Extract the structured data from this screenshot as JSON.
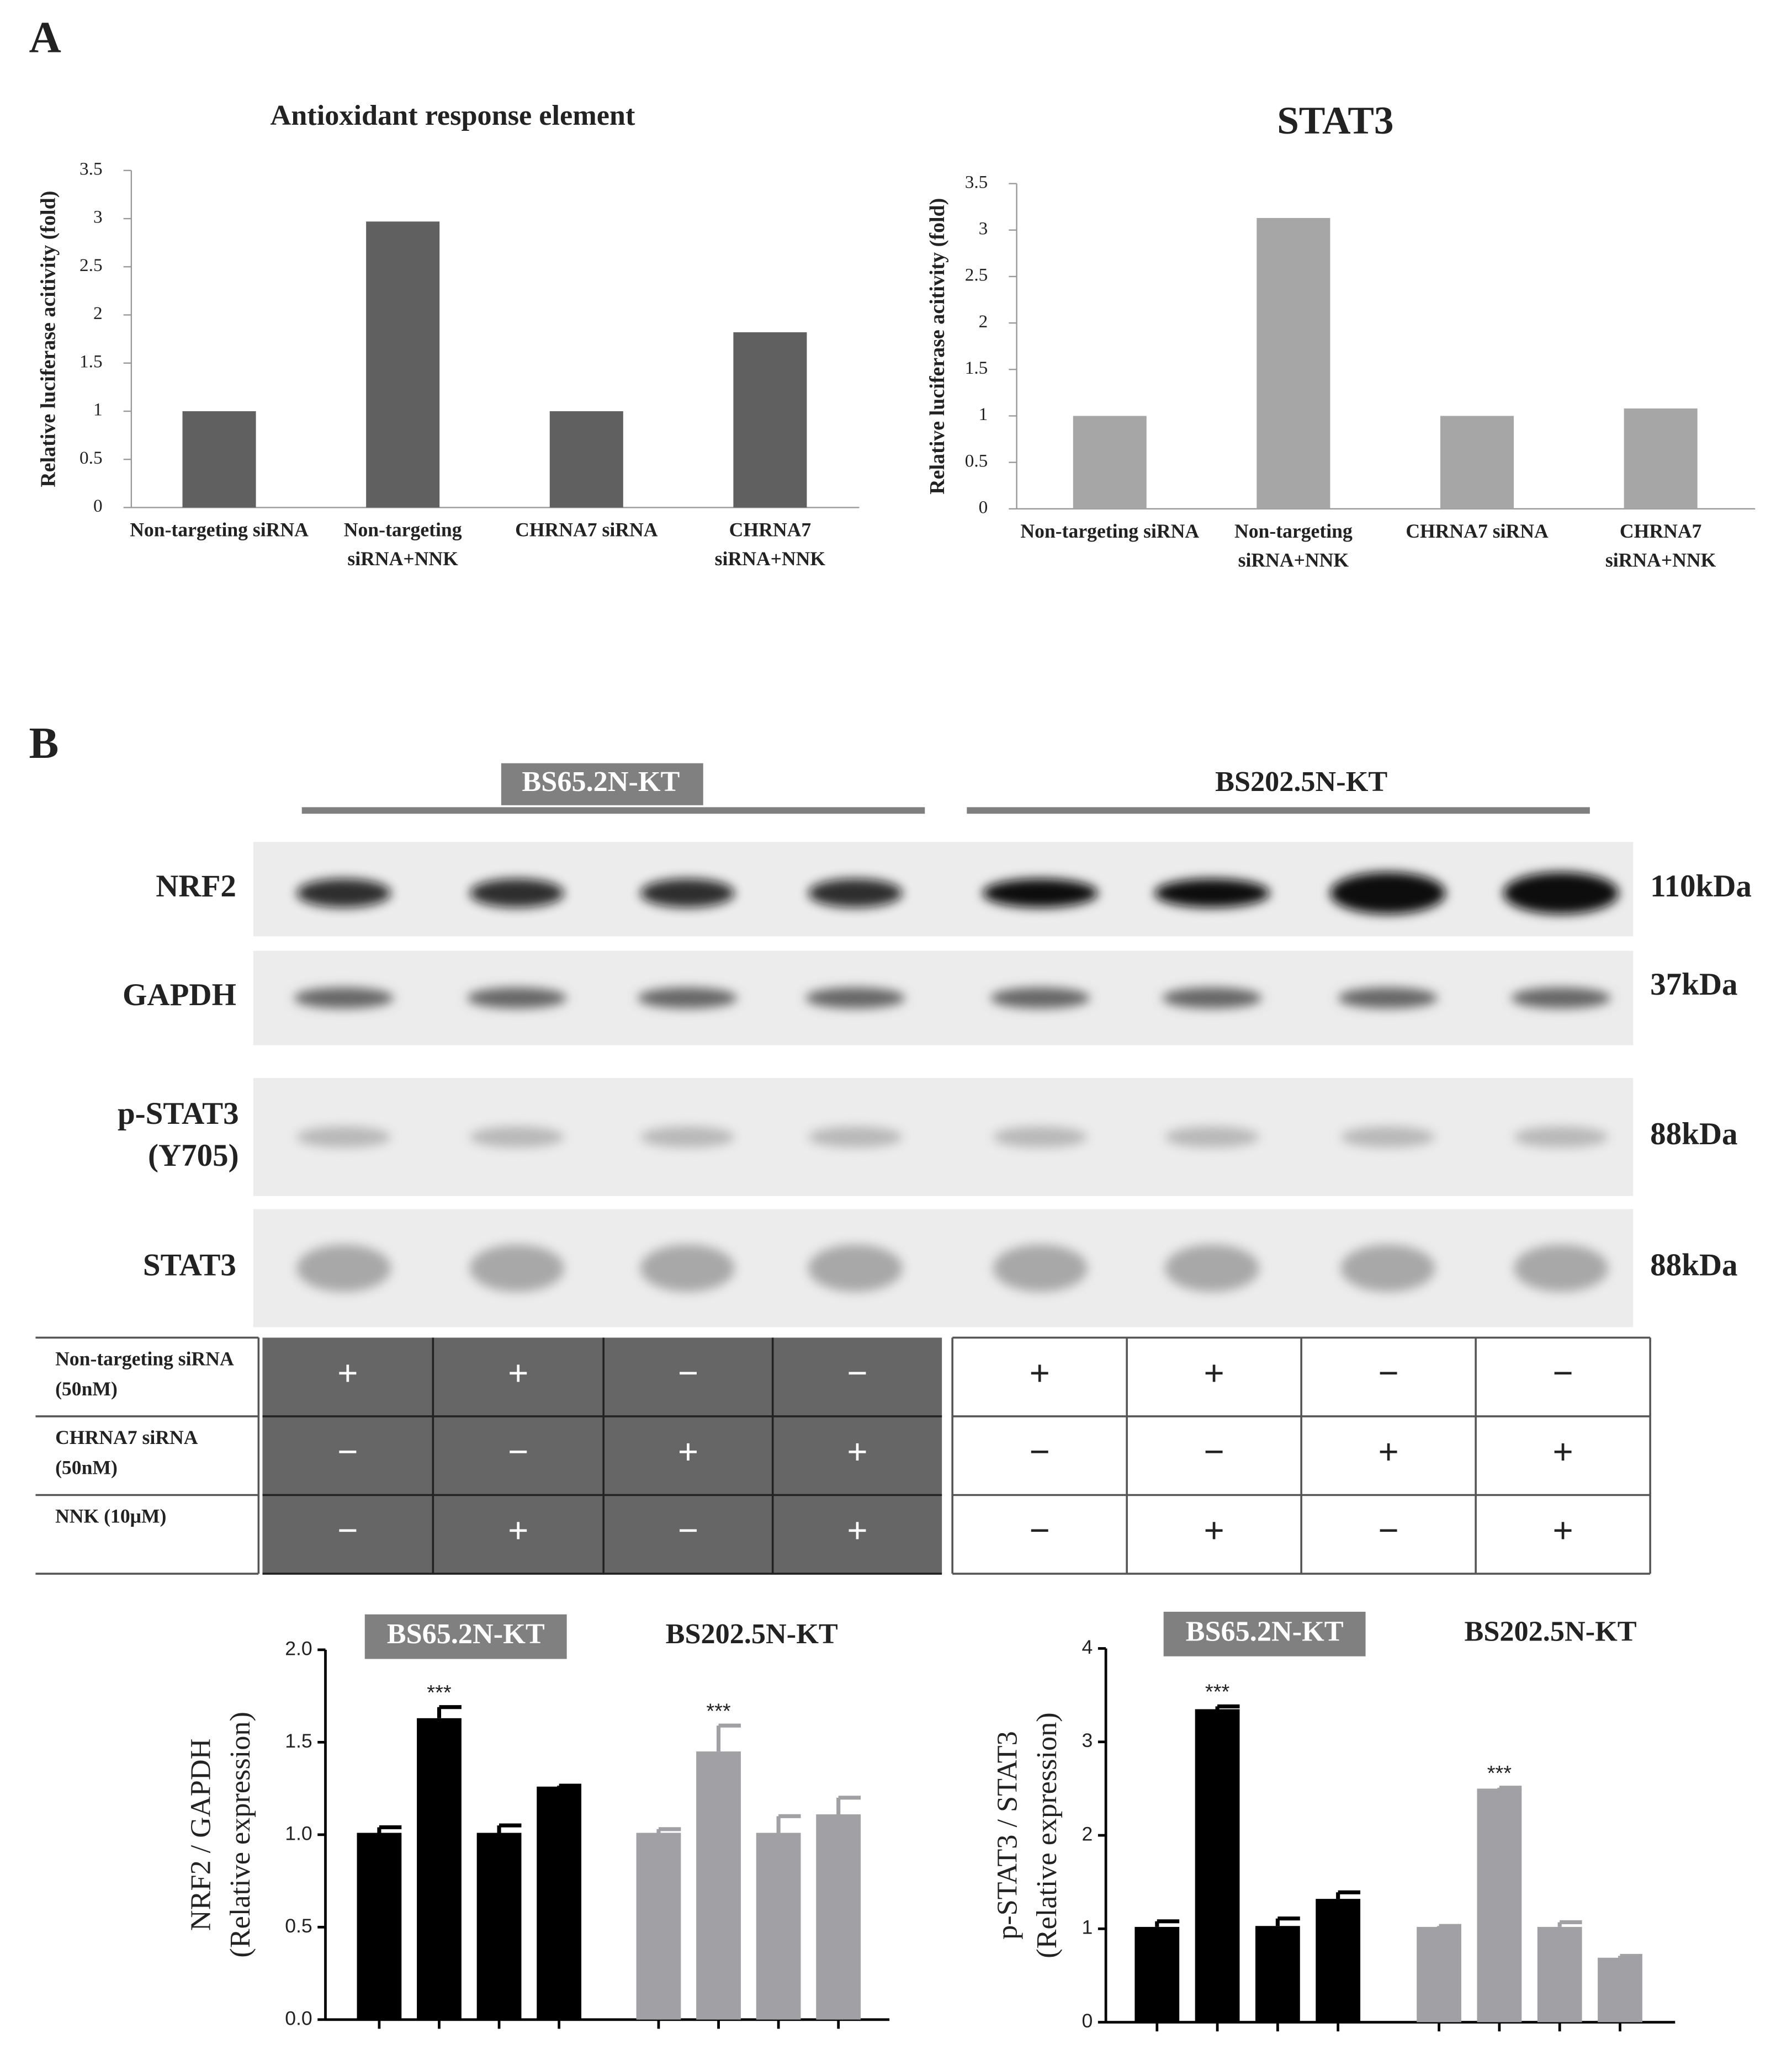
{
  "panel_labels": [
    "A",
    "B"
  ],
  "chart_data": [
    {
      "type": "bar",
      "title": "Antioxidant response element",
      "y_label": [
        "Relative luciferase acitivity (fold)"
      ],
      "categories": [
        "Non-targeting siRNA",
        "Non-targeting siRNA+NNK",
        "CHRNA7 siRNA",
        "CHRNA7 siRNA+NNK"
      ],
      "values": [
        1,
        2.97,
        1,
        1.82
      ],
      "color": "#606060",
      "ylim": [
        0,
        3.5
      ],
      "yticks": [
        0,
        0.5,
        1,
        1.5,
        2,
        2.5,
        3,
        3.5
      ],
      "grid": false
    },
    {
      "type": "bar",
      "title": "STAT3",
      "y_label": [
        "Relative luciferase acitivity (fold)"
      ],
      "categories": [
        "Non-targeting siRNA",
        "Non-targeting siRNA+NNK",
        "CHRNA7 siRNA",
        "CHRNA7 siRNA+NNK"
      ],
      "values": [
        1,
        3.13,
        1,
        1.08
      ],
      "color": "#a6a6a6",
      "ylim": [
        0,
        3.5
      ],
      "yticks": [
        0,
        0.5,
        1,
        1.5,
        2,
        2.5,
        3,
        3.5
      ],
      "grid": false
    },
    {
      "type": "grouped_bar",
      "y_label": [
        "NRF2 / GAPDH",
        "(Relative expression)"
      ],
      "series": [
        {
          "name": "BS65.2N-KT",
          "color": "#000000",
          "label_box": "#808080",
          "values": [
            1.01,
            1.63,
            1.01,
            1.26
          ],
          "errors": [
            0.03,
            0.06,
            0.04,
            0.005
          ],
          "labels": [
            null,
            "***",
            null,
            null
          ]
        },
        {
          "name": "BS202.5N-KT",
          "color": "#a0a0a5",
          "values": [
            1.01,
            1.45,
            1.01,
            1.11
          ],
          "errors": [
            0.02,
            0.14,
            0.09,
            0.09
          ],
          "labels": [
            null,
            "***",
            null,
            null
          ]
        }
      ],
      "ylim": [
        0,
        2
      ],
      "yticks": [
        {
          "value": 0,
          "label": "0.0"
        },
        {
          "value": 0.5,
          "label": "0.5"
        },
        {
          "value": 1,
          "label": "1.0"
        },
        {
          "value": 1.5,
          "label": "1.5"
        },
        {
          "value": 2,
          "label": "2.0"
        }
      ],
      "grid": false
    },
    {
      "type": "grouped_bar",
      "y_label": [
        "p-STAT3 / STAT3",
        "(Relative expression)"
      ],
      "series": [
        {
          "name": "BS65.2N-KT",
          "color": "#000000",
          "label_box": "#808080",
          "values": [
            1.02,
            3.35,
            1.03,
            1.32
          ],
          "errors": [
            0.06,
            0.03,
            0.08,
            0.07
          ],
          "labels": [
            null,
            "***",
            null,
            null
          ]
        },
        {
          "name": "BS202.5N-KT",
          "color": "#a0a0a5",
          "values": [
            1.02,
            2.5,
            1.02,
            0.69
          ],
          "errors": [
            0.01,
            0.01,
            0.05,
            0.02
          ],
          "labels": [
            null,
            "***",
            null,
            null
          ]
        }
      ],
      "ylim": [
        0,
        4
      ],
      "yticks": [
        0,
        1,
        2,
        3,
        4
      ],
      "grid": false
    }
  ],
  "blot": {
    "group_labels": [
      "BS65.2N-KT",
      "BS202.5N-KT"
    ],
    "rows": [
      {
        "protein": "NRF2",
        "size": "110kDa"
      },
      {
        "protein": "GAPDH",
        "size": "37kDa"
      },
      {
        "protein": "p-STAT3 (Y705)",
        "size": "88kDa"
      },
      {
        "protein": "STAT3",
        "size": "88kDa"
      }
    ]
  },
  "treatment_table": {
    "rows": [
      [
        "Non-targeting siRNA (50nM)",
        "+",
        "+",
        "−",
        "−",
        "+",
        "+",
        "−",
        "−"
      ],
      [
        "CHRNA7 siRNA (50nM)",
        "−",
        "−",
        "+",
        "+",
        "−",
        "−",
        "+",
        "+"
      ],
      [
        "NNK (10μM)",
        "−",
        "+",
        "−",
        "+",
        "−",
        "+",
        "−",
        "+"
      ]
    ]
  }
}
